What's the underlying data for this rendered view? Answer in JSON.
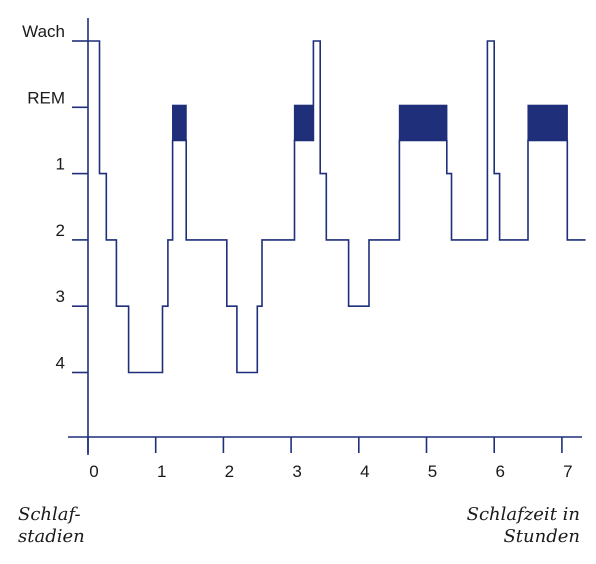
{
  "chart_data": {
    "type": "line",
    "step": true,
    "title": "",
    "xlabel_lines": [
      "Schlafzeit in",
      "Stunden"
    ],
    "ylabel_lines": [
      "Schlaf-",
      "stadien"
    ],
    "x_ticks": [
      0,
      1,
      2,
      3,
      4,
      5,
      6,
      7
    ],
    "x_tick_labels": [
      "0",
      "1",
      "2",
      "3",
      "4",
      "5",
      "6",
      "7"
    ],
    "xlim": [
      0,
      7.25
    ],
    "y_levels": [
      {
        "key": "wach",
        "label": "Wach",
        "rank": 0
      },
      {
        "key": "rem",
        "label": "REM",
        "rank": 1
      },
      {
        "key": "s1",
        "label": "1",
        "rank": 2
      },
      {
        "key": "s2",
        "label": "2",
        "rank": 3
      },
      {
        "key": "s3",
        "label": "3",
        "rank": 4
      },
      {
        "key": "s4",
        "label": "4",
        "rank": 5
      }
    ],
    "grid": false,
    "line_color": "#1f2f7a",
    "rem_fill_color": "#1f2f7a",
    "series": [
      {
        "points": [
          [
            0,
            0
          ],
          [
            0.17,
            0
          ],
          [
            0.17,
            2
          ],
          [
            0.27,
            2
          ],
          [
            0.27,
            3
          ],
          [
            0.42,
            3
          ],
          [
            0.42,
            4
          ],
          [
            0.6,
            4
          ],
          [
            0.6,
            5
          ],
          [
            1.1,
            5
          ],
          [
            1.1,
            4
          ],
          [
            1.18,
            4
          ],
          [
            1.18,
            3
          ],
          [
            1.25,
            3
          ],
          [
            1.25,
            1.5
          ],
          [
            1.45,
            1.5
          ],
          [
            1.45,
            3
          ],
          [
            2.05,
            3
          ],
          [
            2.05,
            4
          ],
          [
            2.2,
            4
          ],
          [
            2.2,
            5
          ],
          [
            2.5,
            5
          ],
          [
            2.5,
            4
          ],
          [
            2.57,
            4
          ],
          [
            2.57,
            3
          ],
          [
            3.05,
            3
          ],
          [
            3.05,
            1.5
          ],
          [
            3.33,
            1.5
          ],
          [
            3.33,
            0
          ],
          [
            3.43,
            0
          ],
          [
            3.43,
            2
          ],
          [
            3.52,
            2
          ],
          [
            3.52,
            3
          ],
          [
            3.85,
            3
          ],
          [
            3.85,
            4
          ],
          [
            4.15,
            4
          ],
          [
            4.15,
            3
          ],
          [
            4.6,
            3
          ],
          [
            4.6,
            1.5
          ],
          [
            5.3,
            1.5
          ],
          [
            5.3,
            2
          ],
          [
            5.37,
            2
          ],
          [
            5.37,
            3
          ],
          [
            5.9,
            3
          ],
          [
            5.9,
            0
          ],
          [
            6.0,
            0
          ],
          [
            6.0,
            2
          ],
          [
            6.08,
            2
          ],
          [
            6.08,
            3
          ],
          [
            6.5,
            3
          ],
          [
            6.5,
            1.5
          ],
          [
            7.08,
            1.5
          ],
          [
            7.08,
            3
          ],
          [
            7.35,
            3
          ]
        ]
      }
    ],
    "rem_periods": [
      {
        "x": [
          1.25,
          1.45
        ]
      },
      {
        "x": [
          3.05,
          3.33
        ]
      },
      {
        "x": [
          4.6,
          5.3
        ]
      },
      {
        "x": [
          6.5,
          7.08
        ]
      }
    ]
  }
}
